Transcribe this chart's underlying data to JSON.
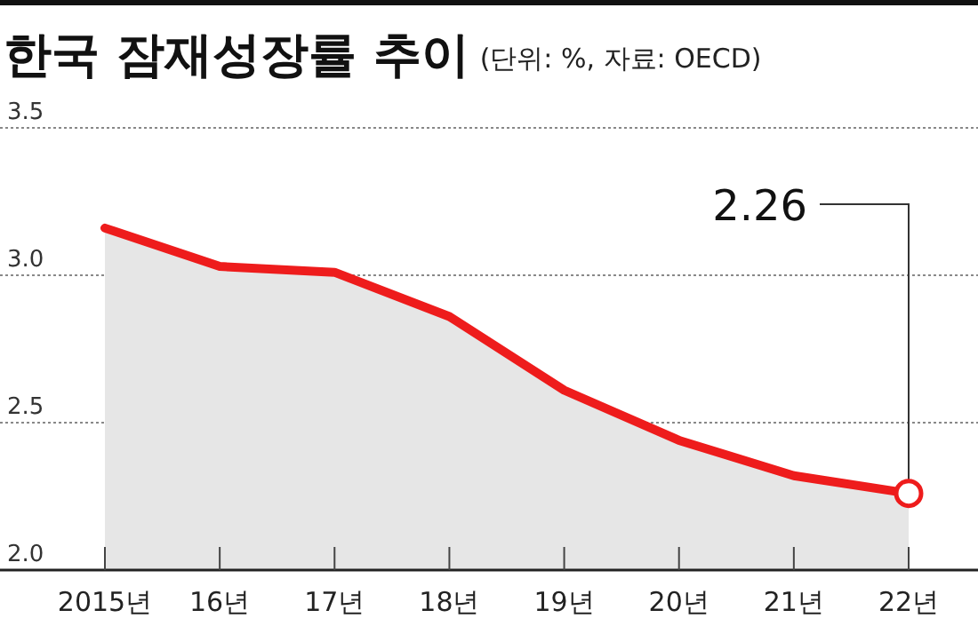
{
  "chart_data": {
    "type": "area",
    "title": "한국 잠재성장률 추이",
    "subtitle": "(단위: %, 자료: OECD)",
    "categories": [
      "2015년",
      "16년",
      "17년",
      "18년",
      "19년",
      "20년",
      "21년",
      "22년"
    ],
    "series": [
      {
        "color": "#ee1c1c",
        "values": [
          3.16,
          3.03,
          3.01,
          2.86,
          2.61,
          2.44,
          2.32,
          2.26
        ]
      }
    ],
    "ylim": [
      2,
      3.5
    ],
    "yticks": [
      {
        "value": 2,
        "label": "2.0"
      },
      {
        "value": 2.5,
        "label": "2.5"
      },
      {
        "value": 3,
        "label": "3.0"
      },
      {
        "value": 3.5,
        "label": "3.5"
      }
    ],
    "grid": "y",
    "annotations": [
      {
        "text": "2.26",
        "x": "22년",
        "y": 2.26
      }
    ]
  }
}
